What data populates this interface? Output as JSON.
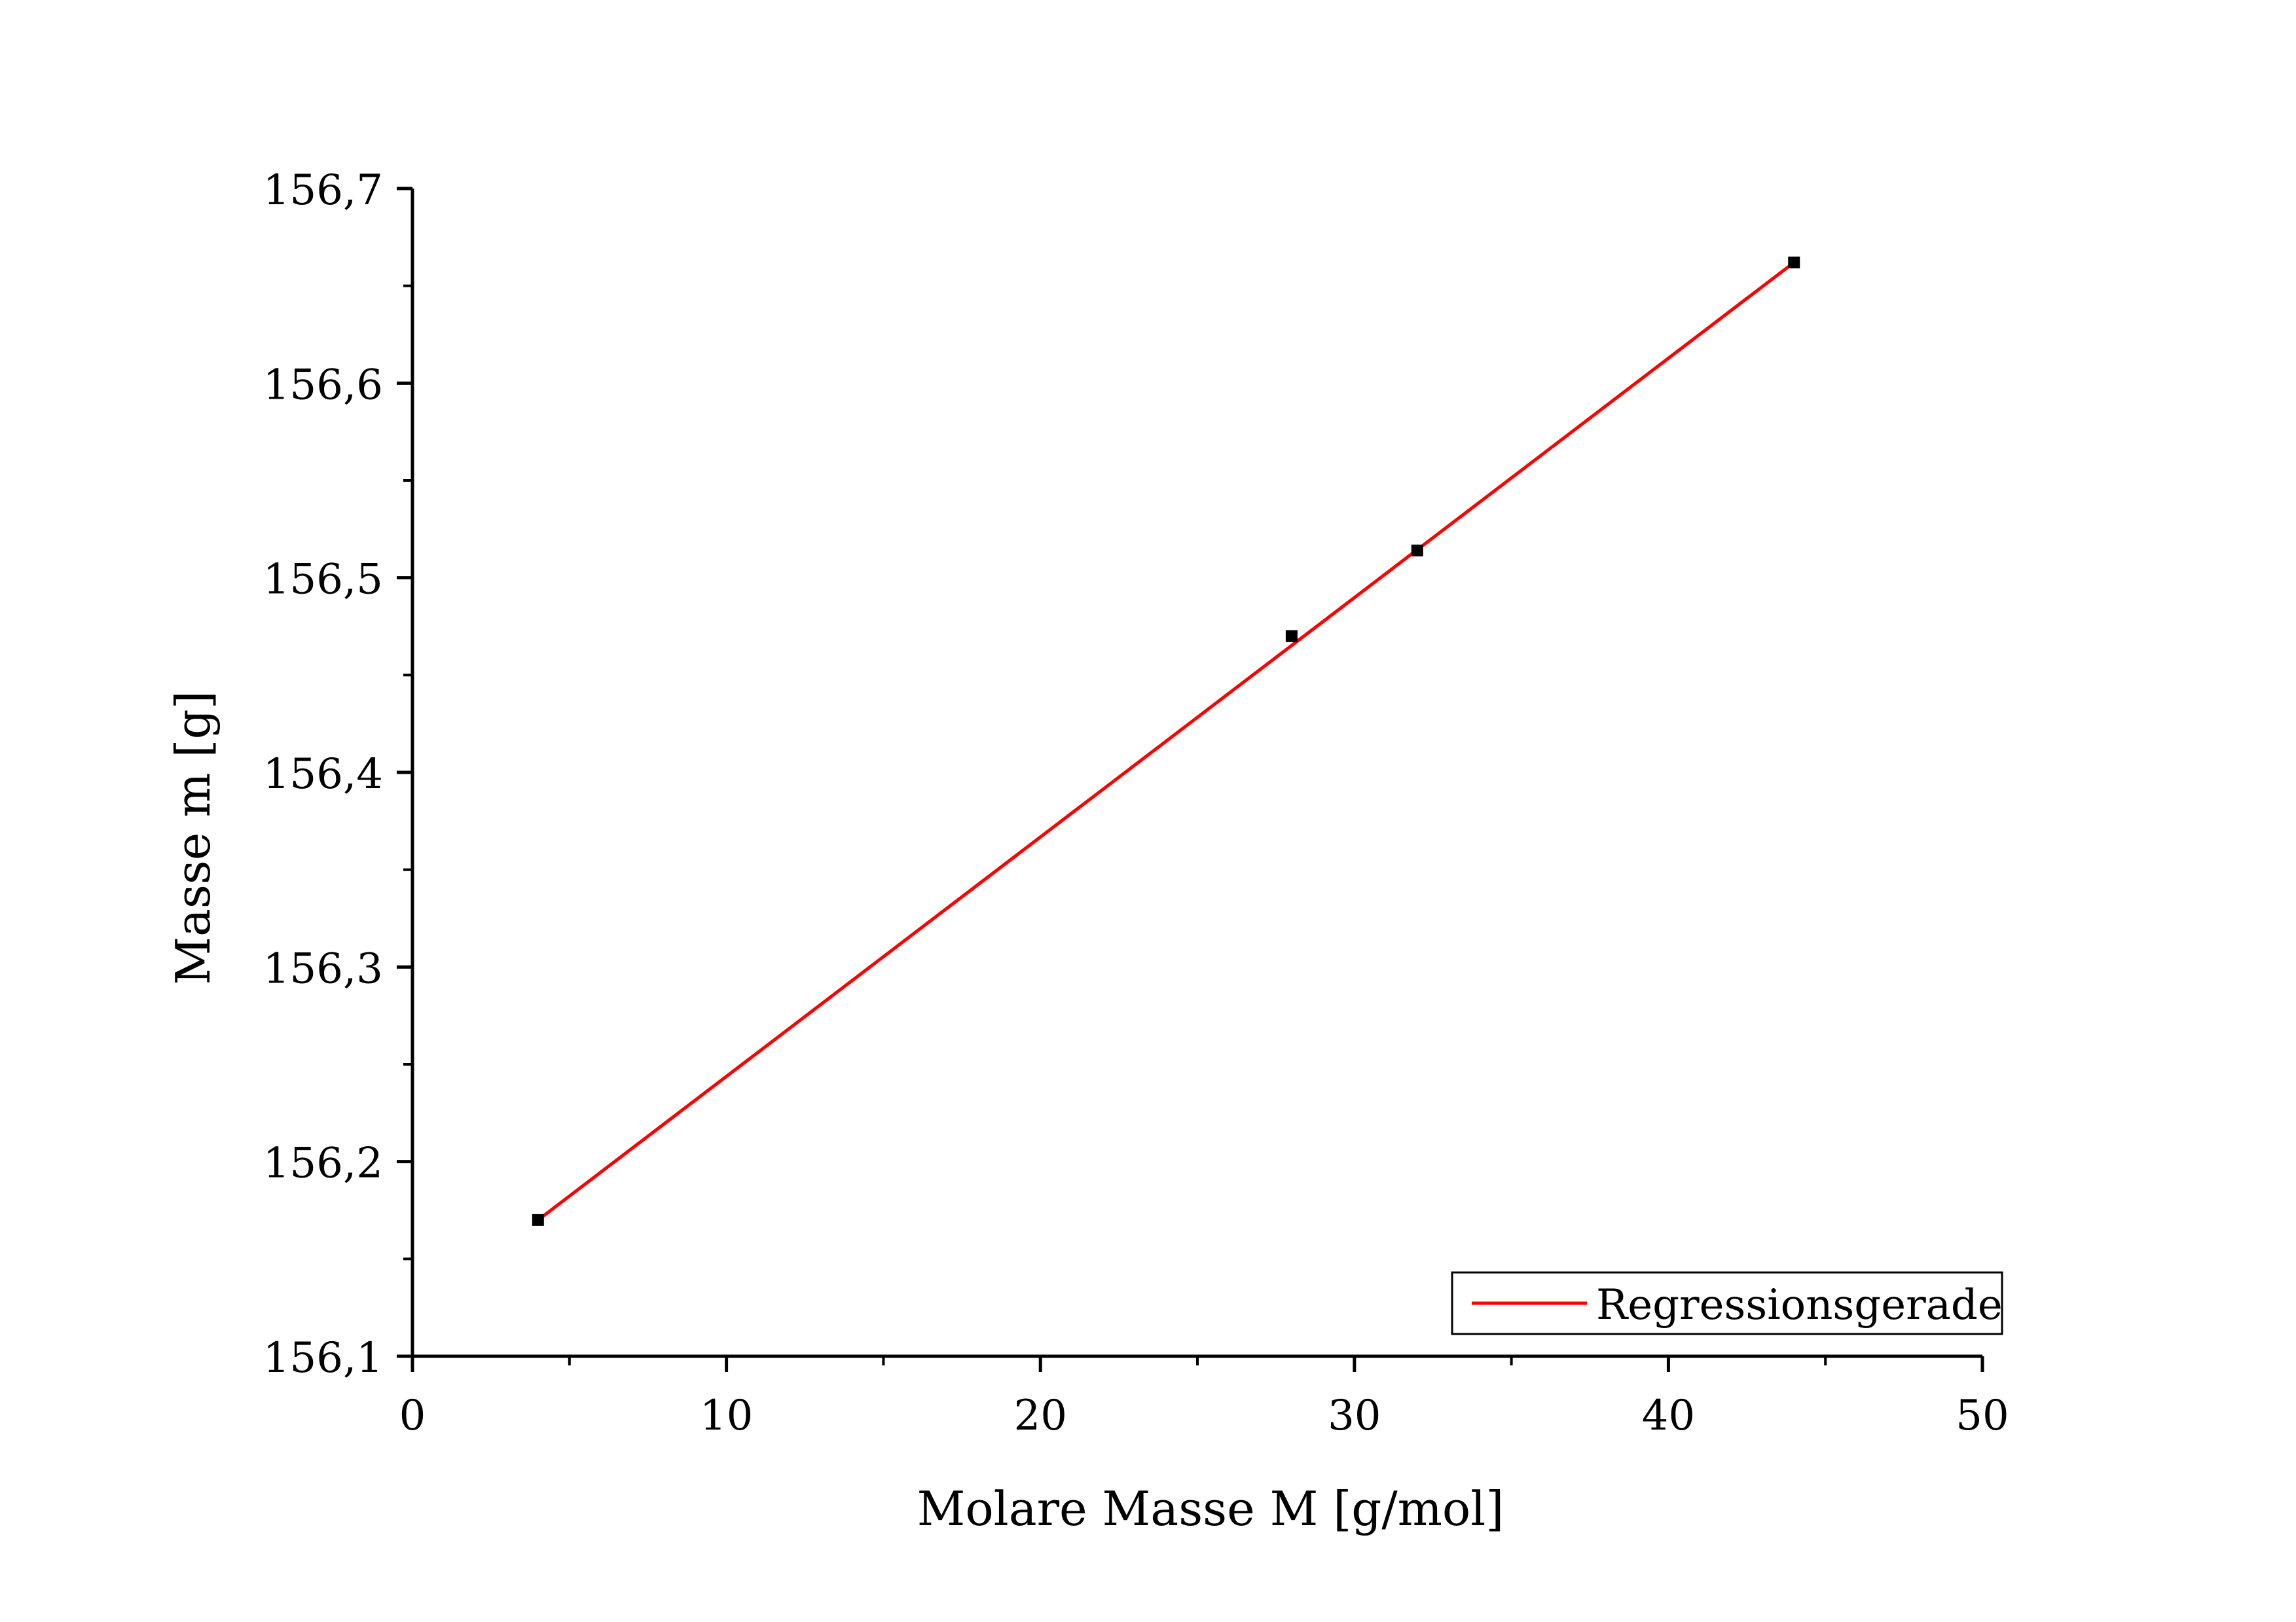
{
  "chart_data": {
    "type": "scatter",
    "xlabel": "Molare Masse M [g/mol]",
    "ylabel": "Masse m [g]",
    "xlim": [
      0,
      50
    ],
    "ylim": [
      156.1,
      156.7
    ],
    "x_ticks": [
      0,
      10,
      20,
      30,
      40,
      50
    ],
    "x_tick_labels": [
      "0",
      "10",
      "20",
      "30",
      "40",
      "50"
    ],
    "y_ticks": [
      156.1,
      156.2,
      156.3,
      156.4,
      156.5,
      156.6,
      156.7
    ],
    "y_tick_labels": [
      "156,1",
      "156,2",
      "156,3",
      "156,4",
      "156,5",
      "156,6",
      "156,7"
    ],
    "grid": false,
    "legend_position": "bottom-right",
    "series": [
      {
        "type": "scatter",
        "marker_color": "#000000",
        "points": [
          {
            "x": 4,
            "y": 156.17
          },
          {
            "x": 28,
            "y": 156.47
          },
          {
            "x": 32,
            "y": 156.514
          },
          {
            "x": 44,
            "y": 156.662
          }
        ]
      },
      {
        "name": "Regressionsgerade",
        "type": "line",
        "color": "#ff0000",
        "points": [
          {
            "x": 4,
            "y": 156.17
          },
          {
            "x": 44,
            "y": 156.662
          }
        ]
      }
    ]
  }
}
